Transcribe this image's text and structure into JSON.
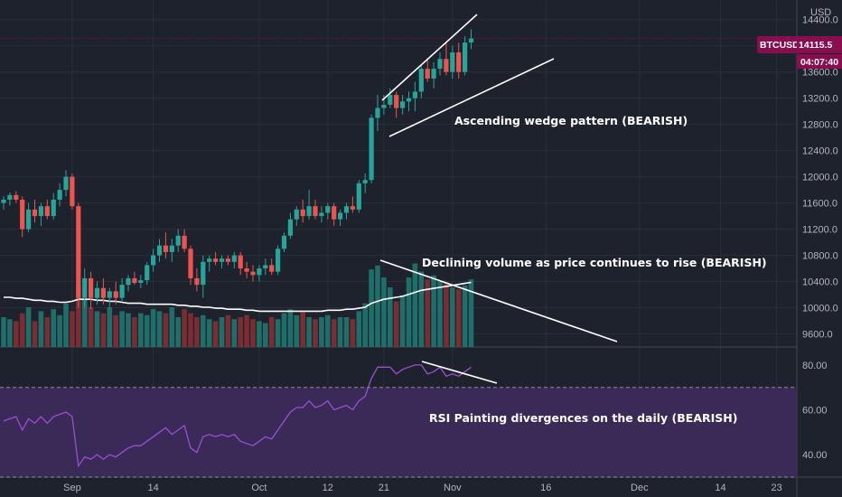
{
  "chart_data": [
    {
      "type": "candlestick",
      "symbol": "BTCUSD",
      "currency_label": "USD",
      "price_badge": {
        "value": "14115.5",
        "countdown": "04:07:40"
      },
      "y_ticks": [
        9600,
        10000,
        10400,
        10800,
        11200,
        11600,
        12000,
        12400,
        12800,
        13200,
        13600,
        14000,
        14400
      ],
      "ylim": [
        9400,
        14700
      ],
      "x_ticks": [
        {
          "label": "Sep",
          "index": 11
        },
        {
          "label": "14",
          "index": 24
        },
        {
          "label": "Oct",
          "index": 41
        },
        {
          "label": "12",
          "index": 52
        },
        {
          "label": "21",
          "index": 61
        },
        {
          "label": "Nov",
          "index": 72
        },
        {
          "label": "16",
          "index": 87
        },
        {
          "label": "Dec",
          "index": 102
        },
        {
          "label": "14",
          "index": 115
        },
        {
          "label": "23",
          "index": 124
        }
      ],
      "candles": [
        {
          "o": 11600,
          "h": 11700,
          "l": 11500,
          "c": 11650
        },
        {
          "o": 11650,
          "h": 11760,
          "l": 11560,
          "c": 11720
        },
        {
          "o": 11720,
          "h": 11780,
          "l": 11600,
          "c": 11650
        },
        {
          "o": 11650,
          "h": 11700,
          "l": 11080,
          "c": 11200
        },
        {
          "o": 11200,
          "h": 11600,
          "l": 11150,
          "c": 11500
        },
        {
          "o": 11500,
          "h": 11650,
          "l": 11300,
          "c": 11400
        },
        {
          "o": 11400,
          "h": 11600,
          "l": 11250,
          "c": 11550
        },
        {
          "o": 11550,
          "h": 11650,
          "l": 11350,
          "c": 11400
        },
        {
          "o": 11400,
          "h": 11750,
          "l": 11350,
          "c": 11650
        },
        {
          "o": 11650,
          "h": 11900,
          "l": 11550,
          "c": 11800
        },
        {
          "o": 11800,
          "h": 12100,
          "l": 11700,
          "c": 12000
        },
        {
          "o": 12000,
          "h": 12050,
          "l": 11500,
          "c": 11550
        },
        {
          "o": 11550,
          "h": 11600,
          "l": 10000,
          "c": 10150
        },
        {
          "o": 10150,
          "h": 10600,
          "l": 10000,
          "c": 10450
        },
        {
          "o": 10450,
          "h": 10550,
          "l": 9980,
          "c": 10150
        },
        {
          "o": 10150,
          "h": 10400,
          "l": 10050,
          "c": 10300
        },
        {
          "o": 10300,
          "h": 10450,
          "l": 10050,
          "c": 10150
        },
        {
          "o": 10150,
          "h": 10300,
          "l": 10000,
          "c": 10250
        },
        {
          "o": 10250,
          "h": 10400,
          "l": 10050,
          "c": 10150
        },
        {
          "o": 10150,
          "h": 10450,
          "l": 10100,
          "c": 10350
        },
        {
          "o": 10350,
          "h": 10500,
          "l": 10250,
          "c": 10450
        },
        {
          "o": 10450,
          "h": 10550,
          "l": 10350,
          "c": 10380
        },
        {
          "o": 10380,
          "h": 10500,
          "l": 10300,
          "c": 10420
        },
        {
          "o": 10420,
          "h": 10700,
          "l": 10350,
          "c": 10650
        },
        {
          "o": 10650,
          "h": 10900,
          "l": 10550,
          "c": 10800
        },
        {
          "o": 10800,
          "h": 11050,
          "l": 10700,
          "c": 10950
        },
        {
          "o": 10950,
          "h": 11150,
          "l": 10750,
          "c": 10850
        },
        {
          "o": 10850,
          "h": 11050,
          "l": 10700,
          "c": 10950
        },
        {
          "o": 10950,
          "h": 11200,
          "l": 10850,
          "c": 11100
        },
        {
          "o": 11100,
          "h": 11200,
          "l": 10850,
          "c": 10900
        },
        {
          "o": 10900,
          "h": 10950,
          "l": 10350,
          "c": 10450
        },
        {
          "o": 10450,
          "h": 10600,
          "l": 10250,
          "c": 10350
        },
        {
          "o": 10350,
          "h": 10800,
          "l": 10150,
          "c": 10700
        },
        {
          "o": 10700,
          "h": 10800,
          "l": 10550,
          "c": 10750
        },
        {
          "o": 10750,
          "h": 10850,
          "l": 10650,
          "c": 10700
        },
        {
          "o": 10700,
          "h": 10800,
          "l": 10600,
          "c": 10750
        },
        {
          "o": 10750,
          "h": 10800,
          "l": 10650,
          "c": 10700
        },
        {
          "o": 10700,
          "h": 10850,
          "l": 10600,
          "c": 10800
        },
        {
          "o": 10800,
          "h": 10850,
          "l": 10500,
          "c": 10600
        },
        {
          "o": 10600,
          "h": 10700,
          "l": 10450,
          "c": 10550
        },
        {
          "o": 10550,
          "h": 10650,
          "l": 10400,
          "c": 10500
        },
        {
          "o": 10500,
          "h": 10650,
          "l": 10400,
          "c": 10600
        },
        {
          "o": 10600,
          "h": 10750,
          "l": 10500,
          "c": 10650
        },
        {
          "o": 10650,
          "h": 10750,
          "l": 10500,
          "c": 10550
        },
        {
          "o": 10550,
          "h": 10950,
          "l": 10500,
          "c": 10900
        },
        {
          "o": 10900,
          "h": 11150,
          "l": 10850,
          "c": 11100
        },
        {
          "o": 11100,
          "h": 11450,
          "l": 11050,
          "c": 11350
        },
        {
          "o": 11350,
          "h": 11550,
          "l": 11250,
          "c": 11500
        },
        {
          "o": 11500,
          "h": 11650,
          "l": 11300,
          "c": 11400
        },
        {
          "o": 11400,
          "h": 11800,
          "l": 11350,
          "c": 11550
        },
        {
          "o": 11550,
          "h": 11650,
          "l": 11350,
          "c": 11400
        },
        {
          "o": 11400,
          "h": 11550,
          "l": 11300,
          "c": 11450
        },
        {
          "o": 11450,
          "h": 11600,
          "l": 11350,
          "c": 11550
        },
        {
          "o": 11550,
          "h": 11600,
          "l": 11250,
          "c": 11350
        },
        {
          "o": 11350,
          "h": 11500,
          "l": 11250,
          "c": 11450
        },
        {
          "o": 11450,
          "h": 11600,
          "l": 11350,
          "c": 11550
        },
        {
          "o": 11550,
          "h": 11700,
          "l": 11450,
          "c": 11500
        },
        {
          "o": 11500,
          "h": 11950,
          "l": 11450,
          "c": 11900
        },
        {
          "o": 11900,
          "h": 12050,
          "l": 11750,
          "c": 11950
        },
        {
          "o": 11950,
          "h": 12950,
          "l": 11900,
          "c": 12900
        },
        {
          "o": 12900,
          "h": 13250,
          "l": 12700,
          "c": 13050
        },
        {
          "o": 13050,
          "h": 13250,
          "l": 12950,
          "c": 13100
        },
        {
          "o": 13100,
          "h": 13350,
          "l": 13050,
          "c": 13250
        },
        {
          "o": 13250,
          "h": 13300,
          "l": 12900,
          "c": 13050
        },
        {
          "o": 13050,
          "h": 13250,
          "l": 12950,
          "c": 13150
        },
        {
          "o": 13150,
          "h": 13300,
          "l": 13000,
          "c": 13200
        },
        {
          "o": 13200,
          "h": 13450,
          "l": 13000,
          "c": 13300
        },
        {
          "o": 13300,
          "h": 13700,
          "l": 13200,
          "c": 13650
        },
        {
          "o": 13650,
          "h": 13800,
          "l": 13450,
          "c": 13500
        },
        {
          "o": 13500,
          "h": 13750,
          "l": 13350,
          "c": 13650
        },
        {
          "o": 13650,
          "h": 13900,
          "l": 13550,
          "c": 13800
        },
        {
          "o": 13800,
          "h": 14050,
          "l": 13550,
          "c": 13600
        },
        {
          "o": 13600,
          "h": 14000,
          "l": 13500,
          "c": 13900
        },
        {
          "o": 13900,
          "h": 14050,
          "l": 13500,
          "c": 13600
        },
        {
          "o": 13600,
          "h": 14150,
          "l": 13550,
          "c": 14050
        },
        {
          "o": 14050,
          "h": 14250,
          "l": 13950,
          "c": 14115.5
        }
      ],
      "colors": {
        "up": "#26a69a",
        "down": "#ef5350",
        "bg": "#1e222d",
        "grid": "#2a2e39",
        "badge": "#880e4f"
      }
    },
    {
      "type": "bar",
      "name": "Volume",
      "ma_color": "#ffffff",
      "volumes": [
        30,
        28,
        26,
        34,
        40,
        26,
        36,
        30,
        38,
        32,
        44,
        36,
        62,
        48,
        40,
        36,
        34,
        40,
        32,
        36,
        34,
        30,
        34,
        32,
        38,
        36,
        34,
        40,
        30,
        38,
        34,
        30,
        32,
        28,
        26,
        30,
        32,
        28,
        30,
        32,
        28,
        26,
        24,
        30,
        28,
        34,
        38,
        32,
        36,
        30,
        28,
        30,
        32,
        28,
        30,
        30,
        28,
        36,
        44,
        78,
        82,
        70,
        60,
        46,
        52,
        70,
        84,
        76,
        68,
        72,
        66,
        64,
        60,
        58,
        62,
        68
      ],
      "volume_ma": [
        50,
        50,
        49,
        49,
        48,
        47,
        47,
        46,
        46,
        45,
        45,
        46,
        48,
        48,
        48,
        47,
        47,
        46,
        46,
        45,
        44,
        44,
        44,
        43,
        43,
        43,
        43,
        43,
        42,
        42,
        41,
        41,
        40,
        40,
        39,
        39,
        38,
        38,
        38,
        37,
        37,
        36,
        36,
        36,
        36,
        36,
        36,
        36,
        36,
        36,
        36,
        36,
        37,
        37,
        37,
        38,
        38,
        39,
        40,
        44,
        46,
        48,
        49,
        50,
        51,
        53,
        55,
        57,
        58,
        59,
        60,
        61,
        62,
        63,
        64,
        65
      ]
    },
    {
      "type": "line",
      "name": "RSI",
      "y_ticks": [
        40,
        60,
        80
      ],
      "ylim": [
        30,
        88
      ],
      "band": [
        30,
        70
      ],
      "line_color": "#9c4dd6",
      "band_color": "#3a2a57",
      "values": [
        55,
        56,
        57,
        51,
        56,
        54,
        57,
        54,
        57,
        58,
        59,
        57,
        35,
        39,
        38,
        40,
        38,
        40,
        39,
        41,
        43,
        44,
        44,
        46,
        48,
        50,
        52,
        49,
        51,
        53,
        43,
        41,
        48,
        49,
        48,
        49,
        48,
        49,
        46,
        45,
        44,
        46,
        48,
        47,
        51,
        55,
        59,
        61,
        61,
        64,
        61,
        62,
        64,
        60,
        61,
        62,
        60,
        64,
        66,
        74,
        79,
        79,
        79,
        76,
        78,
        79,
        80,
        80,
        76,
        77,
        79,
        75,
        76,
        75,
        77,
        79
      ]
    }
  ],
  "annotations": {
    "wedge": "Ascending wedge pattern (BEARISH)",
    "volume": "Declining volume as price continues to rise (BEARISH)",
    "rsi": "RSI Painting divergences on the daily (BEARISH)"
  }
}
